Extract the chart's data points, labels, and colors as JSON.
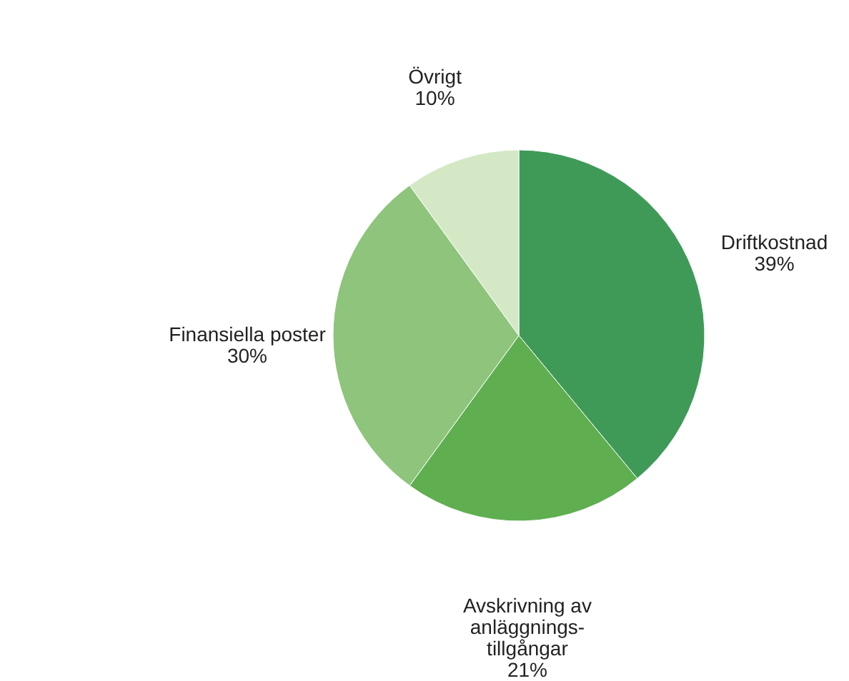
{
  "chart_data": {
    "type": "pie",
    "categories": [
      "Driftkostnad",
      "Avskrivning av\nanläggnings-\ntillgångar",
      "Finansiella poster",
      "Övrigt"
    ],
    "values": [
      39,
      21,
      30,
      10
    ],
    "value_labels": [
      "39%",
      "21%",
      "30%",
      "10%"
    ],
    "colors": [
      "#3f9a58",
      "#5fae50",
      "#8ec47c",
      "#d4e8c6"
    ]
  }
}
